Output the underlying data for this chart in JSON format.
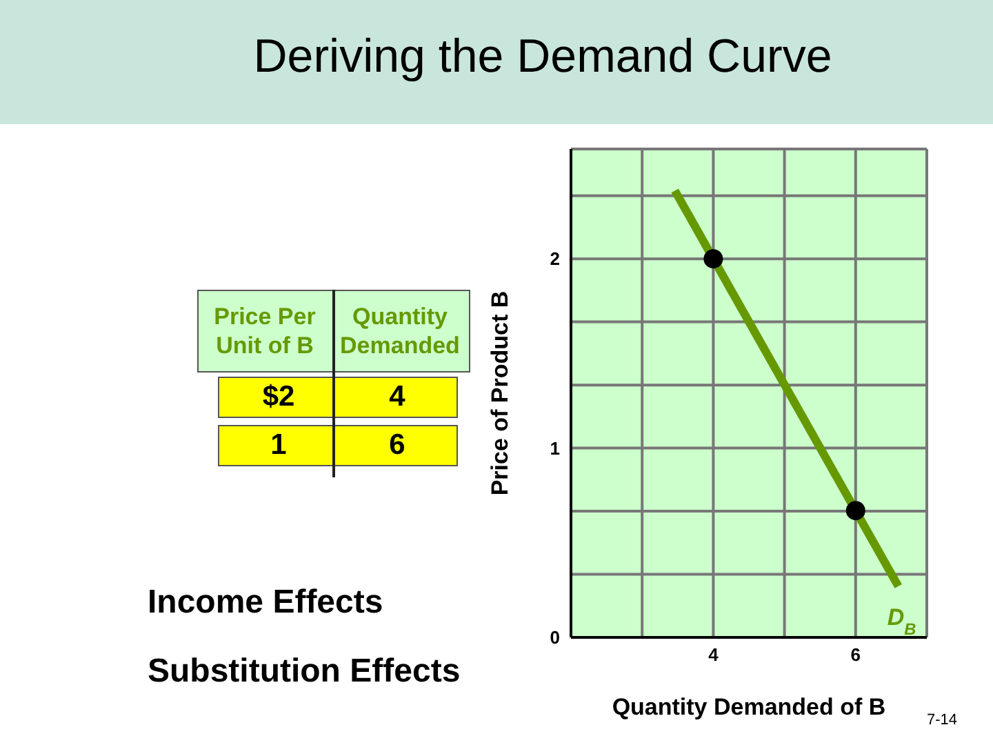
{
  "chart_data": {
    "type": "line",
    "title": "Deriving the Demand Curve",
    "xlabel": "Quantity Demanded of B",
    "ylabel": "Price of Product B",
    "series": [
      {
        "name": "D$_{B}$",
        "color": "#669900",
        "x": [
          3.46,
          6.6
        ],
        "values": [
          2.36,
          0.27
        ],
        "marker": "none"
      },
      {
        "type": "scatter",
        "color": "#000000",
        "x": [
          4,
          6
        ],
        "values": [
          2,
          0.67
        ],
        "marker": "circle"
      }
    ],
    "xlim": [
      2,
      7
    ],
    "xticks": [
      {
        "value": 3,
        "label": null
      },
      4,
      {
        "value": 5,
        "label": null
      },
      6
    ],
    "ylim": [
      0,
      2.58
    ],
    "yticks": [
      0,
      {
        "value": 0.333,
        "label": null
      },
      {
        "value": 0.667,
        "label": null
      },
      1,
      {
        "value": 1.333,
        "label": null
      },
      {
        "value": 1.667,
        "label": null
      },
      2,
      {
        "value": 2.333,
        "label": null
      }
    ],
    "grid": true,
    "legend": false,
    "line_style": "solid",
    "annotations": [
      "Price Per Unit of B",
      "Quantity Demanded",
      "$2",
      "4",
      "1",
      "6",
      "Income Effects",
      "Substitution Effects",
      "7-14"
    ]
  }
}
